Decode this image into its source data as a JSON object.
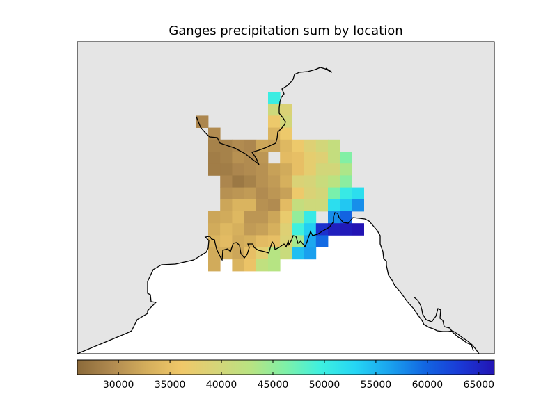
{
  "title": "Ganges precipitation sum by location",
  "colors": {
    "ocean": "#e5e5e5",
    "land": "#ffffff",
    "coastline": "#000000",
    "colormap_stops": [
      "#8b6a3a",
      "#b08a50",
      "#d4ae5c",
      "#f0c869",
      "#d6d478",
      "#b8e482",
      "#7ef0a8",
      "#3ef0e0",
      "#25d6f4",
      "#1aa2ee",
      "#1266e2",
      "#1a3ad6",
      "#2214b4"
    ]
  },
  "colorbar": {
    "min": 26000,
    "max": 66500,
    "ticks": [
      "30000",
      "35000",
      "40000",
      "45000",
      "50000",
      "55000",
      "60000",
      "65000"
    ]
  },
  "chart_data": {
    "type": "heatmap",
    "title": "Ganges precipitation sum by location",
    "value_range": [
      26000,
      66500
    ],
    "cells": [
      {
        "row": 0,
        "col": 5,
        "value": 50000
      },
      {
        "row": 1,
        "col": 5,
        "value": 40500
      },
      {
        "row": 1,
        "col": 6,
        "value": 39000
      },
      {
        "row": 2,
        "col": -1,
        "value": 29000
      },
      {
        "row": 2,
        "col": 5,
        "value": 36500
      },
      {
        "row": 2,
        "col": 6,
        "value": 40000
      },
      {
        "row": 3,
        "col": 0,
        "value": 29500
      },
      {
        "row": 3,
        "col": 5,
        "value": 33500
      },
      {
        "row": 3,
        "col": 6,
        "value": 36500
      },
      {
        "row": 4,
        "col": 0,
        "value": 28500
      },
      {
        "row": 4,
        "col": 1,
        "value": 28500
      },
      {
        "row": 4,
        "col": 2,
        "value": 29500
      },
      {
        "row": 4,
        "col": 3,
        "value": 29000
      },
      {
        "row": 4,
        "col": 4,
        "value": 32000
      },
      {
        "row": 4,
        "col": 5,
        "value": 31500
      },
      {
        "row": 4,
        "col": 6,
        "value": 34000
      },
      {
        "row": 4,
        "col": 7,
        "value": 36500
      },
      {
        "row": 4,
        "col": 8,
        "value": 38500
      },
      {
        "row": 4,
        "col": 9,
        "value": 40000
      },
      {
        "row": 4,
        "col": 10,
        "value": 41500
      },
      {
        "row": 5,
        "col": 0,
        "value": 28000
      },
      {
        "row": 5,
        "col": 1,
        "value": 28500
      },
      {
        "row": 5,
        "col": 2,
        "value": 30000
      },
      {
        "row": 5,
        "col": 3,
        "value": 29500
      },
      {
        "row": 5,
        "col": 4,
        "value": 30500
      },
      {
        "row": 5,
        "col": 6,
        "value": 34500
      },
      {
        "row": 5,
        "col": 7,
        "value": 35000
      },
      {
        "row": 5,
        "col": 8,
        "value": 37500
      },
      {
        "row": 5,
        "col": 9,
        "value": 38500
      },
      {
        "row": 5,
        "col": 10,
        "value": 41500
      },
      {
        "row": 5,
        "col": 11,
        "value": 46000
      },
      {
        "row": 6,
        "col": 0,
        "value": 28000
      },
      {
        "row": 6,
        "col": 1,
        "value": 28000
      },
      {
        "row": 6,
        "col": 2,
        "value": 29000
      },
      {
        "row": 6,
        "col": 3,
        "value": 29500
      },
      {
        "row": 6,
        "col": 4,
        "value": 30000
      },
      {
        "row": 6,
        "col": 5,
        "value": 31500
      },
      {
        "row": 6,
        "col": 6,
        "value": 32500
      },
      {
        "row": 6,
        "col": 7,
        "value": 35000
      },
      {
        "row": 6,
        "col": 8,
        "value": 37500
      },
      {
        "row": 6,
        "col": 9,
        "value": 40000
      },
      {
        "row": 6,
        "col": 10,
        "value": 40000
      },
      {
        "row": 6,
        "col": 11,
        "value": 43500
      },
      {
        "row": 7,
        "col": 1,
        "value": 29000
      },
      {
        "row": 7,
        "col": 2,
        "value": 27500
      },
      {
        "row": 7,
        "col": 3,
        "value": 28500
      },
      {
        "row": 7,
        "col": 4,
        "value": 30000
      },
      {
        "row": 7,
        "col": 5,
        "value": 31000
      },
      {
        "row": 7,
        "col": 6,
        "value": 33000
      },
      {
        "row": 7,
        "col": 7,
        "value": 39000
      },
      {
        "row": 7,
        "col": 8,
        "value": 39500
      },
      {
        "row": 7,
        "col": 9,
        "value": 41000
      },
      {
        "row": 7,
        "col": 10,
        "value": 42500
      },
      {
        "row": 7,
        "col": 11,
        "value": 45500
      },
      {
        "row": 8,
        "col": 1,
        "value": 30000
      },
      {
        "row": 8,
        "col": 2,
        "value": 30500
      },
      {
        "row": 8,
        "col": 3,
        "value": 31000
      },
      {
        "row": 8,
        "col": 4,
        "value": 29500
      },
      {
        "row": 8,
        "col": 5,
        "value": 30500
      },
      {
        "row": 8,
        "col": 6,
        "value": 31500
      },
      {
        "row": 8,
        "col": 7,
        "value": 36500
      },
      {
        "row": 8,
        "col": 8,
        "value": 39000
      },
      {
        "row": 8,
        "col": 9,
        "value": 40000
      },
      {
        "row": 8,
        "col": 10,
        "value": 46500
      },
      {
        "row": 8,
        "col": 11,
        "value": 50500
      },
      {
        "row": 8,
        "col": 12,
        "value": 52000
      },
      {
        "row": 9,
        "col": 1,
        "value": 32000
      },
      {
        "row": 9,
        "col": 2,
        "value": 33500
      },
      {
        "row": 9,
        "col": 3,
        "value": 33500
      },
      {
        "row": 9,
        "col": 4,
        "value": 30000
      },
      {
        "row": 9,
        "col": 5,
        "value": 29500
      },
      {
        "row": 9,
        "col": 6,
        "value": 34500
      },
      {
        "row": 9,
        "col": 7,
        "value": 41500
      },
      {
        "row": 9,
        "col": 8,
        "value": 40500
      },
      {
        "row": 9,
        "col": 9,
        "value": 40500
      },
      {
        "row": 9,
        "col": 10,
        "value": 52000
      },
      {
        "row": 9,
        "col": 11,
        "value": 54000
      },
      {
        "row": 9,
        "col": 12,
        "value": 57500
      },
      {
        "row": 10,
        "col": 0,
        "value": 32000
      },
      {
        "row": 10,
        "col": 1,
        "value": 32500
      },
      {
        "row": 10,
        "col": 2,
        "value": 34000
      },
      {
        "row": 10,
        "col": 3,
        "value": 30500
      },
      {
        "row": 10,
        "col": 4,
        "value": 30500
      },
      {
        "row": 10,
        "col": 5,
        "value": 32000
      },
      {
        "row": 10,
        "col": 6,
        "value": 37000
      },
      {
        "row": 10,
        "col": 7,
        "value": 45000
      },
      {
        "row": 10,
        "col": 8,
        "value": 50500
      },
      {
        "row": 10,
        "col": 10,
        "value": 57500
      },
      {
        "row": 10,
        "col": 11,
        "value": 60000
      },
      {
        "row": 11,
        "col": 0,
        "value": 32500
      },
      {
        "row": 11,
        "col": 1,
        "value": 34000
      },
      {
        "row": 11,
        "col": 2,
        "value": 33000
      },
      {
        "row": 11,
        "col": 3,
        "value": 31000
      },
      {
        "row": 11,
        "col": 4,
        "value": 31500
      },
      {
        "row": 11,
        "col": 5,
        "value": 33000
      },
      {
        "row": 11,
        "col": 6,
        "value": 38500
      },
      {
        "row": 11,
        "col": 7,
        "value": 49500
      },
      {
        "row": 11,
        "col": 8,
        "value": 53500
      },
      {
        "row": 11,
        "col": 9,
        "value": 64000
      },
      {
        "row": 11,
        "col": 10,
        "value": 65500
      },
      {
        "row": 11,
        "col": 11,
        "value": 66000
      },
      {
        "row": 11,
        "col": 12,
        "value": 66500
      },
      {
        "row": 12,
        "col": 0,
        "value": 33500
      },
      {
        "row": 12,
        "col": 1,
        "value": 34500
      },
      {
        "row": 12,
        "col": 2,
        "value": 32500
      },
      {
        "row": 12,
        "col": 3,
        "value": 33000
      },
      {
        "row": 12,
        "col": 4,
        "value": 34500
      },
      {
        "row": 12,
        "col": 5,
        "value": 35000
      },
      {
        "row": 12,
        "col": 6,
        "value": 39000
      },
      {
        "row": 12,
        "col": 7,
        "value": 44000
      },
      {
        "row": 12,
        "col": 8,
        "value": 56000
      },
      {
        "row": 12,
        "col": 9,
        "value": 59500
      },
      {
        "row": 13,
        "col": 0,
        "value": 32500
      },
      {
        "row": 13,
        "col": 1,
        "value": 33000
      },
      {
        "row": 13,
        "col": 2,
        "value": 32000
      },
      {
        "row": 13,
        "col": 3,
        "value": 35000
      },
      {
        "row": 13,
        "col": 4,
        "value": 38000
      },
      {
        "row": 13,
        "col": 5,
        "value": 43000
      },
      {
        "row": 13,
        "col": 6,
        "value": 41000
      },
      {
        "row": 13,
        "col": 7,
        "value": 54500
      },
      {
        "row": 13,
        "col": 8,
        "value": 56500
      },
      {
        "row": 14,
        "col": 0,
        "value": 32500
      },
      {
        "row": 14,
        "col": 2,
        "value": 33500
      },
      {
        "row": 14,
        "col": 3,
        "value": 35500
      },
      {
        "row": 14,
        "col": 4,
        "value": 42000
      },
      {
        "row": 14,
        "col": 5,
        "value": 43000
      }
    ]
  }
}
